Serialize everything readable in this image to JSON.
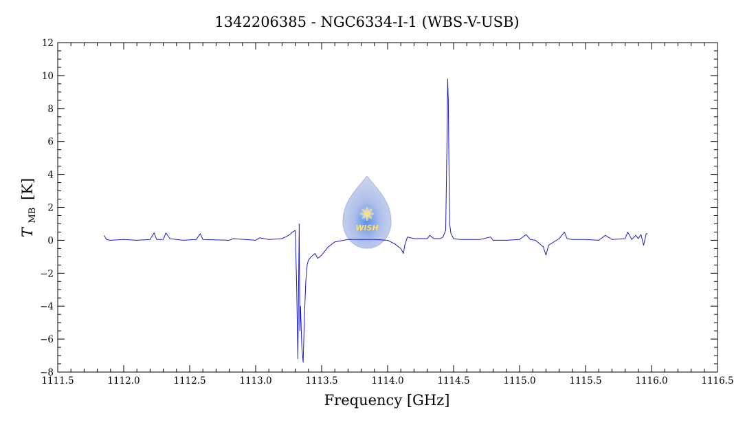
{
  "chart_data": {
    "type": "line",
    "title": "1342206385 - NGC6334-I-1 (WBS-V-USB)",
    "xlabel": "Frequency [GHz]",
    "ylabel_main": "T",
    "ylabel_sub": "MB",
    "ylabel_unit": "[K]",
    "xlim": [
      1111.5,
      1116.5
    ],
    "ylim": [
      -8,
      12
    ],
    "xticks": [
      1111.5,
      1112.0,
      1112.5,
      1113.0,
      1113.5,
      1114.0,
      1114.5,
      1115.0,
      1115.5,
      1116.0,
      1116.5
    ],
    "xtick_labels": [
      "1111.5",
      "1112.0",
      "1112.5",
      "1113.0",
      "1113.5",
      "1114.0",
      "1114.5",
      "1115.0",
      "1115.5",
      "1116.0",
      "1116.5"
    ],
    "yticks": [
      -8,
      -6,
      -4,
      -2,
      0,
      2,
      4,
      6,
      8,
      10,
      12
    ],
    "ytick_labels": [
      "−8",
      "−6",
      "−4",
      "−2",
      "0",
      "2",
      "4",
      "6",
      "8",
      "10",
      "12"
    ],
    "grid": false,
    "line_color": "#1a1acc",
    "series": [
      {
        "x": [
          1111.85,
          1111.87,
          1111.9,
          1112.0,
          1112.1,
          1112.2,
          1112.23,
          1112.25,
          1112.3,
          1112.32,
          1112.35,
          1112.4,
          1112.45,
          1112.55,
          1112.58,
          1112.6,
          1112.8,
          1112.83,
          1113.0,
          1113.03,
          1113.1,
          1113.2,
          1113.25,
          1113.28,
          1113.3,
          1113.31,
          1113.32,
          1113.33,
          1113.335,
          1113.34,
          1113.35,
          1113.36,
          1113.37,
          1113.38,
          1113.39,
          1113.4,
          1113.42,
          1113.45,
          1113.47,
          1113.5,
          1113.55,
          1113.6,
          1113.7,
          1113.8,
          1113.9,
          1114.0,
          1114.05,
          1114.1,
          1114.12,
          1114.13,
          1114.15,
          1114.2,
          1114.3,
          1114.32,
          1114.35,
          1114.4,
          1114.42,
          1114.44,
          1114.45,
          1114.455,
          1114.46,
          1114.465,
          1114.47,
          1114.48,
          1114.5,
          1114.55,
          1114.6,
          1114.7,
          1114.78,
          1114.8,
          1114.9,
          1115.0,
          1115.05,
          1115.08,
          1115.12,
          1115.18,
          1115.2,
          1115.22,
          1115.3,
          1115.34,
          1115.36,
          1115.4,
          1115.5,
          1115.6,
          1115.65,
          1115.7,
          1115.8,
          1115.82,
          1115.85,
          1115.88,
          1115.9,
          1115.92,
          1115.94,
          1115.96,
          1115.97
        ],
        "y": [
          0.3,
          0.05,
          0.0,
          0.05,
          0.0,
          0.05,
          0.45,
          0.05,
          0.05,
          0.45,
          0.1,
          0.05,
          0.0,
          0.05,
          0.4,
          0.05,
          0.0,
          0.1,
          0.0,
          0.15,
          0.05,
          0.1,
          0.3,
          0.5,
          0.6,
          -2.5,
          -7.2,
          1.0,
          -5.5,
          -4.0,
          -6.5,
          -7.4,
          -4.5,
          -2.5,
          -1.5,
          -1.2,
          -1.0,
          -0.8,
          -1.1,
          -0.9,
          -0.4,
          -0.1,
          0.05,
          0.05,
          0.05,
          0.0,
          -0.2,
          -0.5,
          -0.8,
          -0.3,
          0.2,
          0.1,
          0.1,
          0.3,
          0.1,
          0.1,
          0.2,
          0.6,
          6.0,
          9.8,
          8.5,
          4.5,
          1.0,
          0.4,
          0.1,
          0.05,
          0.05,
          0.05,
          0.2,
          0.0,
          0.0,
          0.05,
          0.35,
          0.05,
          0.0,
          -0.4,
          -0.9,
          -0.3,
          0.1,
          0.5,
          0.1,
          0.05,
          0.05,
          0.0,
          0.3,
          0.05,
          0.1,
          0.5,
          0.05,
          0.3,
          0.1,
          0.35,
          -0.3,
          0.4,
          0.4
        ]
      }
    ]
  },
  "watermark": {
    "text": "WISH",
    "colors": {
      "drop": "#8fa6d8",
      "star": "#ffe066"
    }
  }
}
